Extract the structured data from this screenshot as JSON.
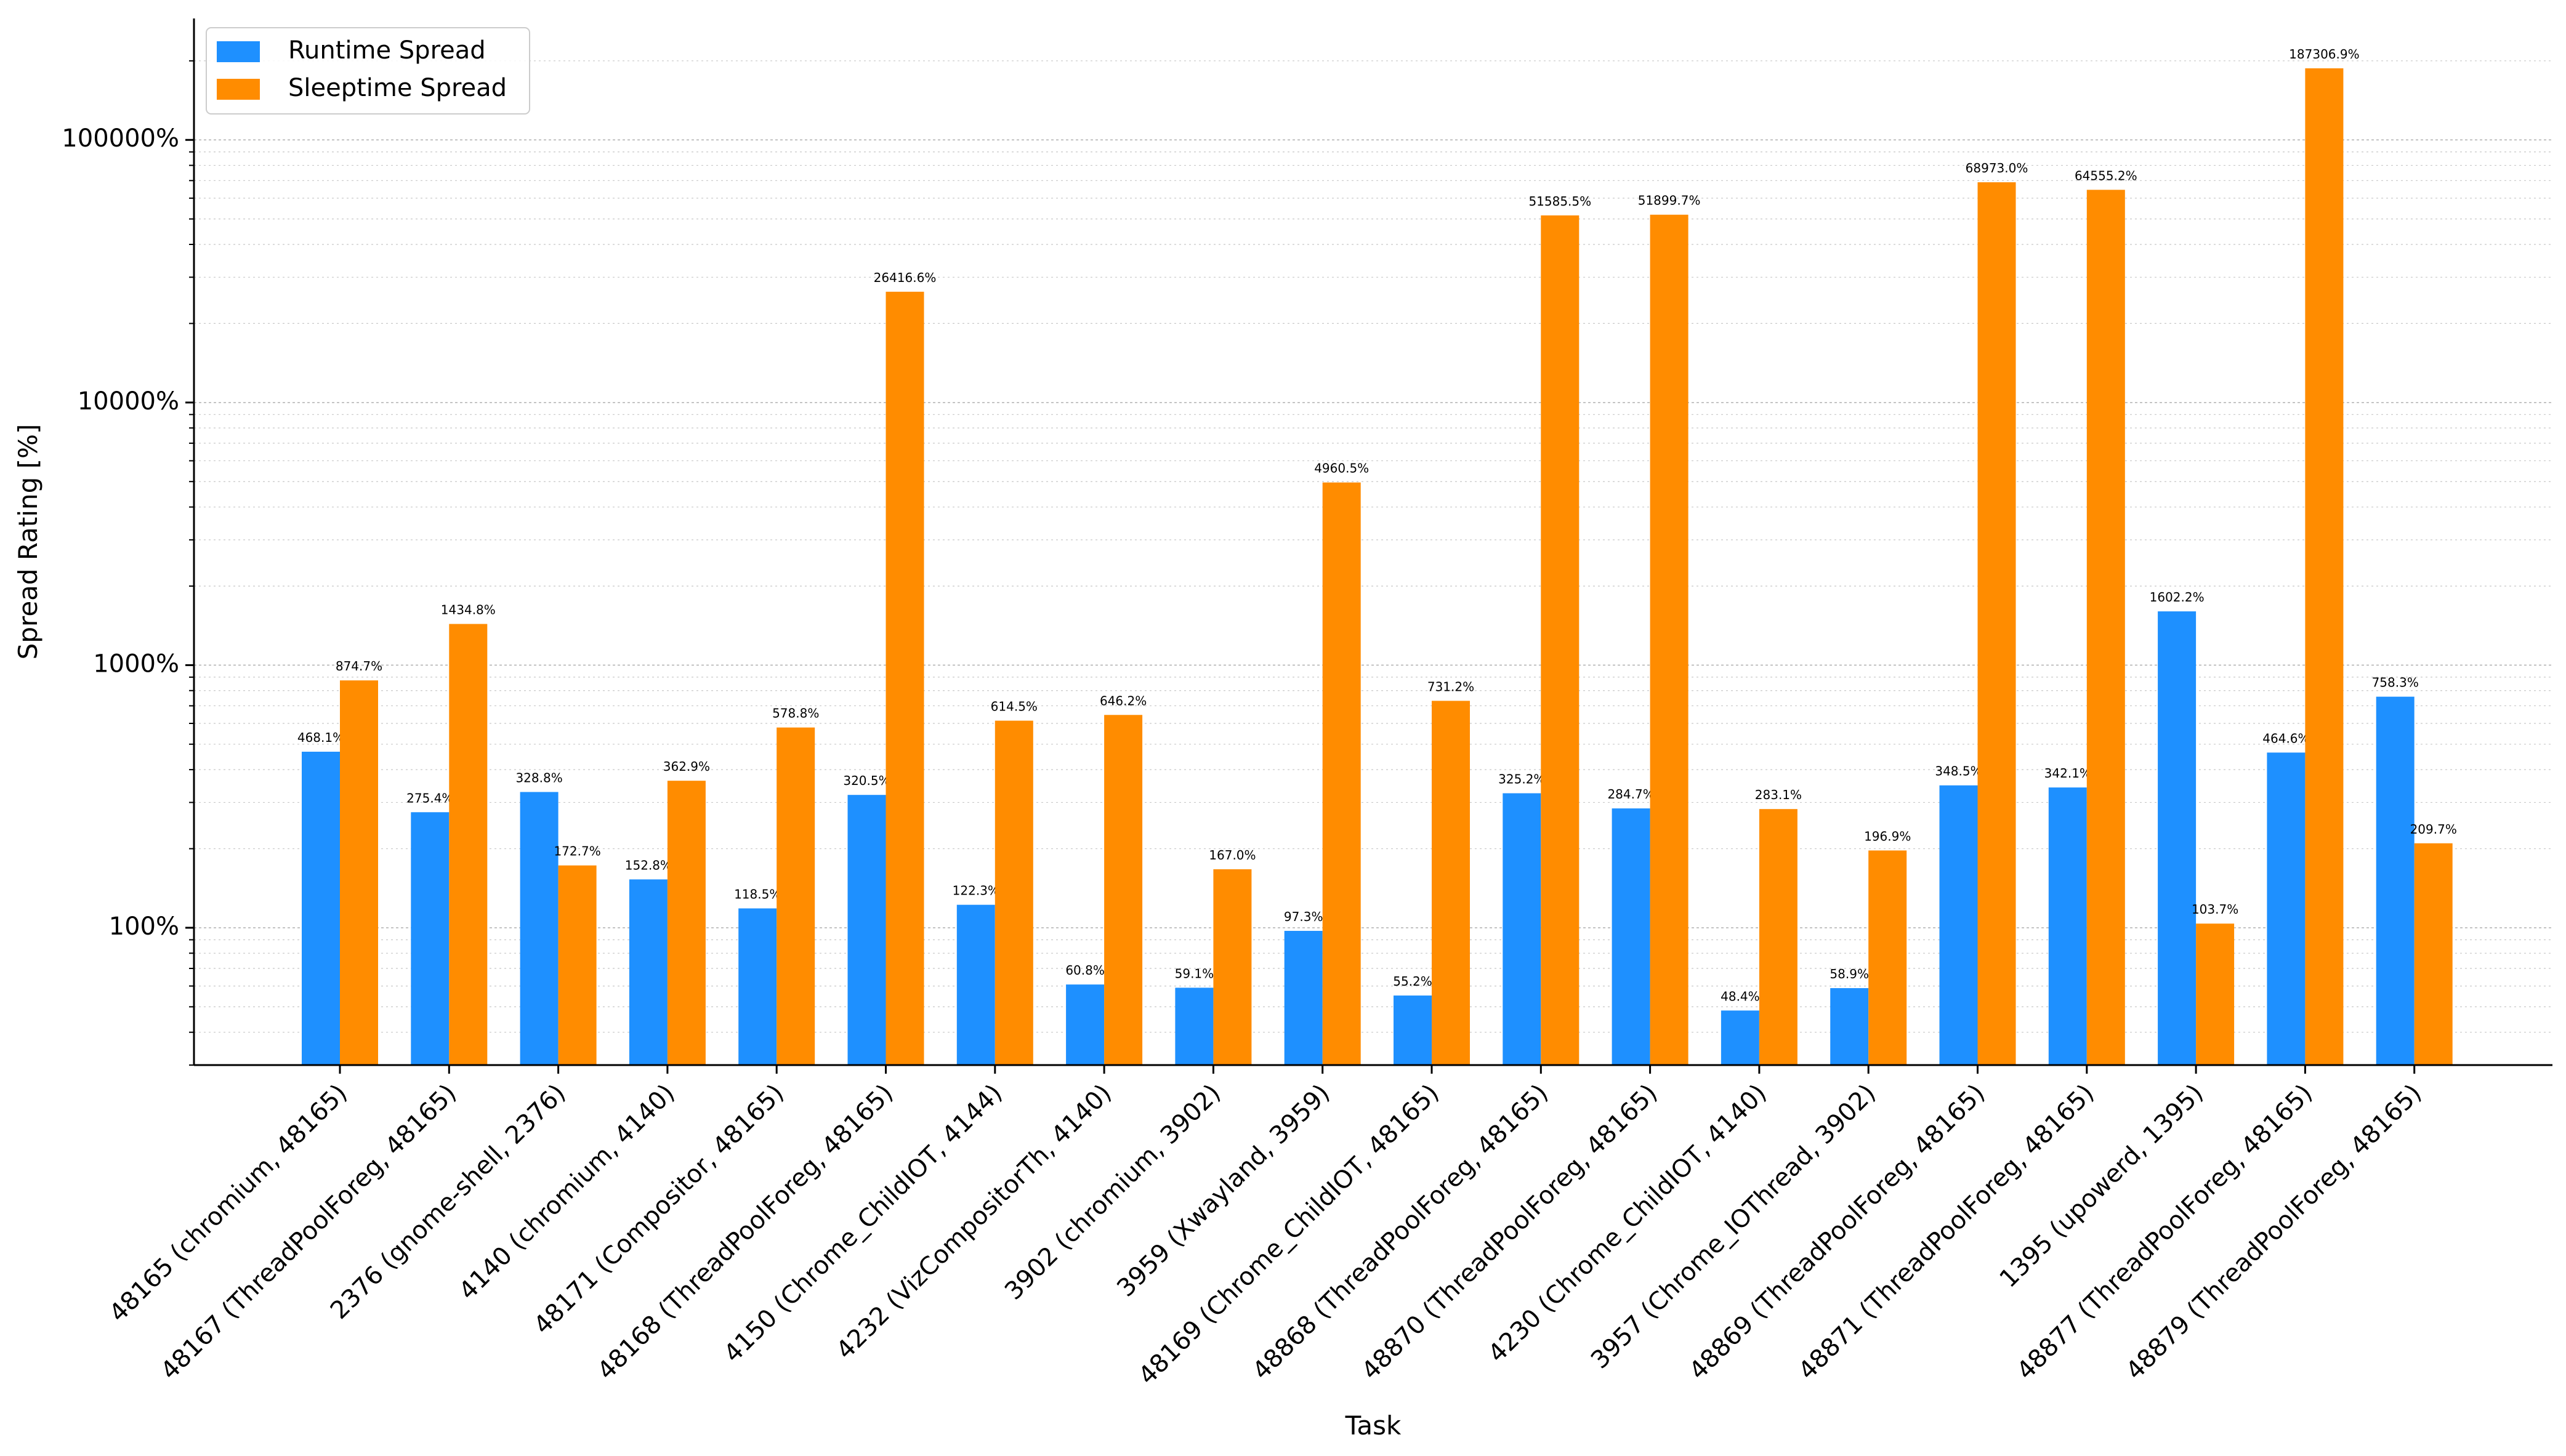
{
  "chart_data": {
    "type": "bar",
    "scale_y": "log",
    "xlabel": "Task",
    "ylabel": "Spread Rating [%]",
    "ylim": [
      30,
      290000
    ],
    "y_ticks": [
      {
        "value": 100,
        "label": "100%"
      },
      {
        "value": 1000,
        "label": "1000%"
      },
      {
        "value": 10000,
        "label": "10000%"
      },
      {
        "value": 100000,
        "label": "100000%"
      }
    ],
    "legend_position": "top-left",
    "categories": [
      "48165 (chromium, 48165)",
      "48167 (ThreadPoolForeg, 48165)",
      "2376 (gnome-shell, 2376)",
      "4140 (chromium, 4140)",
      "48171 (Compositor, 48165)",
      "48168 (ThreadPoolForeg, 48165)",
      "4150 (Chrome_ChildIOT, 4144)",
      "4232 (VizCompositorTh, 4140)",
      "3902 (chromium, 3902)",
      "3959 (Xwayland, 3959)",
      "48169 (Chrome_ChildIOT, 48165)",
      "48868 (ThreadPoolForeg, 48165)",
      "48870 (ThreadPoolForeg, 48165)",
      "4230 (Chrome_ChildIOT, 4140)",
      "3957 (Chrome_IOThread, 3902)",
      "48869 (ThreadPoolForeg, 48165)",
      "48871 (ThreadPoolForeg, 48165)",
      "1395 (upowerd, 1395)",
      "48877 (ThreadPoolForeg, 48165)",
      "48879 (ThreadPoolForeg, 48165)"
    ],
    "series": [
      {
        "name": "Runtime Spread",
        "color": "#1e90ff",
        "values": [
          468.1,
          275.4,
          328.8,
          152.8,
          118.5,
          320.5,
          122.3,
          60.8,
          59.1,
          97.3,
          55.2,
          325.2,
          284.7,
          48.4,
          58.9,
          348.5,
          342.1,
          1602.2,
          464.6,
          758.3
        ],
        "labels": [
          "468.1%",
          "275.4%",
          "328.8%",
          "152.8%",
          "118.5%",
          "320.5%",
          "122.3%",
          "60.8%",
          "59.1%",
          "97.3%",
          "55.2%",
          "325.2%",
          "284.7%",
          "48.4%",
          "58.9%",
          "348.5%",
          "342.1%",
          "1602.2%",
          "464.6%",
          "758.3%"
        ]
      },
      {
        "name": "Sleeptime Spread",
        "color": "#ff8c00",
        "values": [
          874.7,
          1434.8,
          172.7,
          362.9,
          578.8,
          26416.6,
          614.5,
          646.2,
          167.0,
          4960.5,
          731.2,
          51585.5,
          51899.7,
          283.1,
          196.9,
          68973.0,
          64555.2,
          103.7,
          187306.9,
          209.7
        ],
        "labels": [
          "874.7%",
          "1434.8%",
          "172.7%",
          "362.9%",
          "578.8%",
          "26416.6%",
          "614.5%",
          "646.2%",
          "167.0%",
          "4960.5%",
          "731.2%",
          "51585.5%",
          "51899.7%",
          "283.1%",
          "196.9%",
          "68973.0%",
          "64555.2%",
          "103.7%",
          "187306.9%",
          "209.7%"
        ]
      }
    ]
  }
}
